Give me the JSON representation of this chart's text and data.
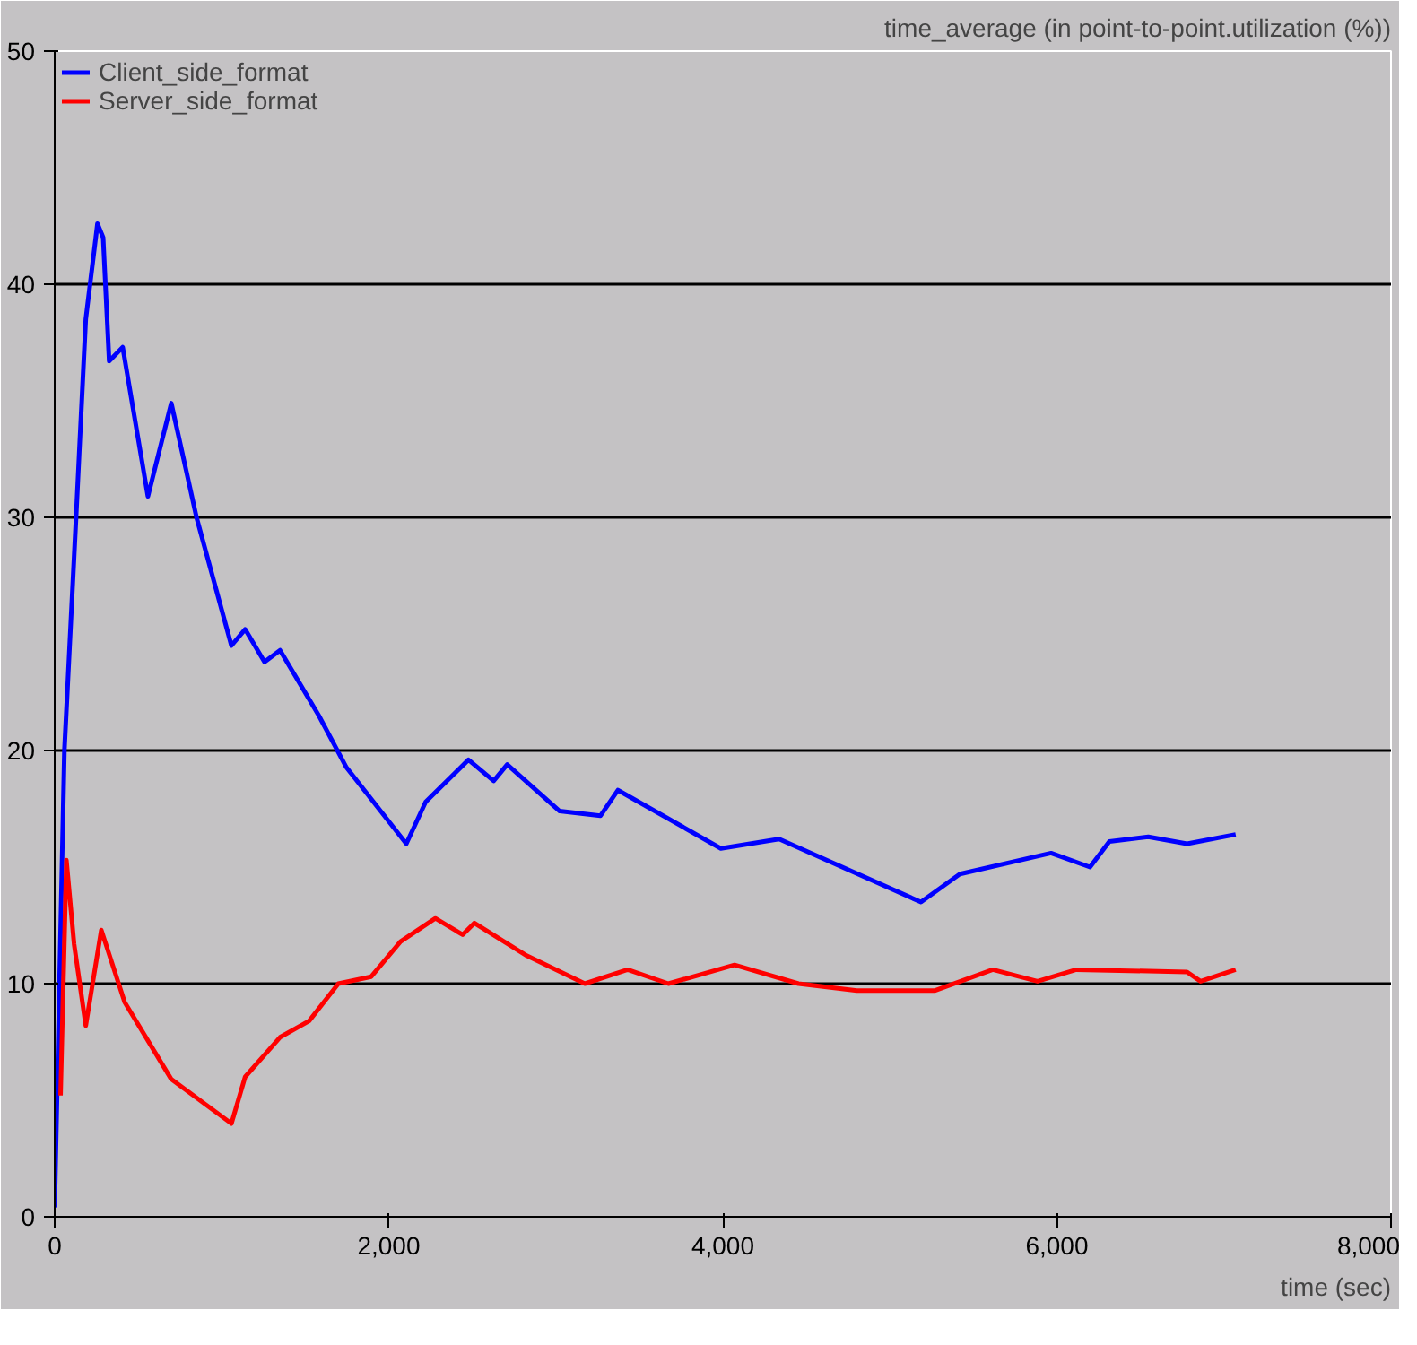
{
  "chart_data": {
    "type": "line",
    "title": "time_average (in point-to-point.utilization (%))",
    "xlabel": "time (sec)",
    "xlim": [
      0,
      8000
    ],
    "ylim": [
      0,
      50
    ],
    "xticks": [
      {
        "value": 0,
        "label": "0"
      },
      {
        "value": 2000,
        "label": "2,000"
      },
      {
        "value": 4000,
        "label": "4,000"
      },
      {
        "value": 6000,
        "label": "6,000"
      },
      {
        "value": 8000,
        "label": "8,000"
      }
    ],
    "yticks": [
      0,
      10,
      20,
      30,
      40,
      50
    ],
    "grid": "y",
    "legend": "top left",
    "line_style": "solid",
    "series": [
      {
        "name": "Client_side_format",
        "color": "#0000ff",
        "x": [
          0,
          58,
          128,
          186,
          256,
          290,
          326,
          407,
          558,
          698,
          849,
          1058,
          1140,
          1256,
          1349,
          1581,
          1744,
          2105,
          2221,
          2477,
          2628,
          2709,
          3023,
          3267,
          3372,
          3988,
          4337,
          5186,
          5419,
          5965,
          6198,
          6314,
          6547,
          6779,
          7070
        ],
        "values": [
          0.4,
          20,
          30,
          38.5,
          42.6,
          42,
          36.7,
          37.3,
          30.9,
          34.9,
          30,
          24.5,
          25.2,
          23.8,
          24.3,
          21.5,
          19.3,
          16,
          17.8,
          19.6,
          18.7,
          19.4,
          17.4,
          17.2,
          18.3,
          15.8,
          16.2,
          13.5,
          14.7,
          15.6,
          15,
          16.1,
          16.3,
          16,
          16.4
        ]
      },
      {
        "name": "Server_side_format",
        "color": "#ff0000",
        "x": [
          35,
          70,
          116,
          186,
          279,
          419,
          698,
          1058,
          1140,
          1349,
          1523,
          1698,
          1895,
          2070,
          2279,
          2442,
          2512,
          2826,
          3174,
          3430,
          3674,
          4070,
          4453,
          4802,
          5267,
          5616,
          5884,
          6116,
          6779,
          6860,
          7070
        ],
        "values": [
          5.2,
          15.3,
          11.7,
          8.2,
          12.3,
          9.2,
          5.9,
          4,
          6,
          7.7,
          8.4,
          10,
          10.3,
          11.8,
          12.8,
          12.1,
          12.6,
          11.2,
          10,
          10.6,
          10,
          10.8,
          10,
          9.7,
          9.7,
          10.6,
          10.1,
          10.6,
          10.5,
          10.1,
          10.6
        ]
      }
    ]
  }
}
